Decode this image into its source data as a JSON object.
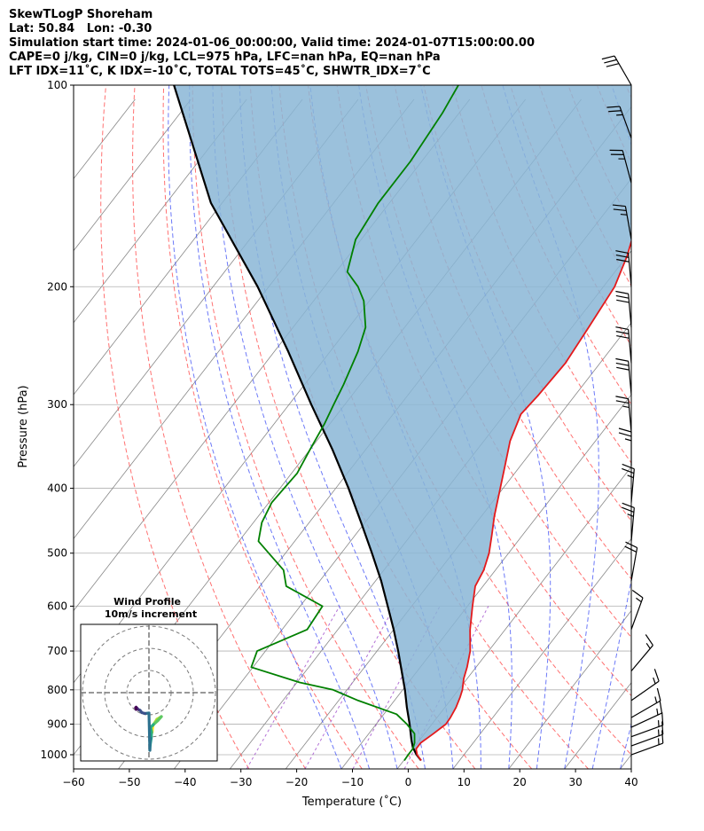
{
  "header": {
    "line1": "SkewTLogP Shoreham",
    "line2": "Lat: 50.84   Lon: -0.30",
    "line3": "Simulation start time: 2024-01-06_00:00:00, Valid time: 2024-01-07T15:00:00.00",
    "line4": "CAPE=0 j/kg, CIN=0 j/kg, LCL=975 hPa, LFC=nan hPa, EQ=nan hPa",
    "line5": "LFT IDX=11˚C, K IDX=-10˚C, TOTAL TOTS=45˚C, SHWTR_IDX=7˚C"
  },
  "colors": {
    "temperature": "#e41a1c",
    "dewpoint": "#008000",
    "parcel": "#000000",
    "cape_fill": "#8ab6d6",
    "dry_adiabat": "#ff4d4d",
    "moist_adiabat": "#3b4cf5",
    "mixing_ratio": "#a04dcc",
    "isotherm": "#888888"
  },
  "chart_data": {
    "type": "line",
    "xlabel": "Temperature (˚C)",
    "ylabel": "Pressure (hPa)",
    "xlim": [
      -60,
      40
    ],
    "ylim": [
      1050,
      100
    ],
    "x_ticks": [
      "−60",
      "−50",
      "−40",
      "−30",
      "−20",
      "−10",
      "0",
      "10",
      "20",
      "30",
      "40"
    ],
    "x_tick_values": [
      -60,
      -50,
      -40,
      -30,
      -20,
      -10,
      0,
      10,
      20,
      30,
      40
    ],
    "y_ticks": [
      "100",
      "200",
      "300",
      "400",
      "500",
      "600",
      "700",
      "800",
      "900",
      "1000"
    ],
    "y_tick_values": [
      100,
      200,
      300,
      400,
      500,
      600,
      700,
      800,
      900,
      1000
    ],
    "y_scale": "log",
    "skew_deg_per_decade": 93,
    "grid": true,
    "series": [
      {
        "key": "temperature",
        "p": [
          1020,
          1000,
          980,
          960,
          930,
          900,
          880,
          850,
          820,
          800,
          770,
          740,
          700,
          650,
          600,
          560,
          530,
          500,
          470,
          440,
          400,
          370,
          340,
          310,
          290,
          260,
          230,
          200,
          180,
          160,
          140,
          120,
          100
        ],
        "t": [
          3.1,
          1.6,
          0.6,
          0.6,
          1.6,
          2.5,
          2.4,
          2.0,
          1.3,
          0.7,
          -0.6,
          -1.6,
          -3.3,
          -6.3,
          -9.1,
          -11.4,
          -12.1,
          -13.5,
          -15.5,
          -17.7,
          -20.5,
          -22.8,
          -25.3,
          -27.1,
          -26.6,
          -26.2,
          -27.0,
          -28.0,
          -30.0,
          -33.0,
          -36.5,
          -39.0,
          -42.5
        ]
      },
      {
        "key": "dewpoint",
        "p": [
          1020,
          1000,
          980,
          960,
          930,
          900,
          870,
          830,
          800,
          780,
          740,
          700,
          650,
          600,
          560,
          530,
          500,
          480,
          450,
          420,
          380,
          350,
          320,
          300,
          280,
          250,
          230,
          210,
          200,
          190,
          170,
          150,
          130,
          110,
          100
        ],
        "t": [
          0.1,
          0.0,
          0.0,
          -0.5,
          -1.8,
          -4.5,
          -7.7,
          -16.5,
          -22.5,
          -29.5,
          -40.3,
          -41.5,
          -35.5,
          -36.0,
          -45.3,
          -48.0,
          -53.0,
          -56.5,
          -58.5,
          -59.5,
          -59.0,
          -60.0,
          -61.0,
          -62.0,
          -63.0,
          -65.0,
          -67.0,
          -71.0,
          -74.0,
          -78.0,
          -81.0,
          -82.0,
          -82.0,
          -83.0,
          -84.0
        ]
      },
      {
        "key": "parcel",
        "p": [
          1020,
          1000,
          975,
          950,
          900,
          850,
          800,
          750,
          700,
          650,
          600,
          550,
          500,
          450,
          400,
          350,
          300,
          250,
          200,
          150,
          100
        ],
        "t": [
          3.1,
          1.5,
          -0.2,
          -1.5,
          -4.0,
          -6.8,
          -9.6,
          -12.8,
          -16.2,
          -20.0,
          -24.3,
          -29.0,
          -34.5,
          -40.7,
          -47.7,
          -56.0,
          -66.0,
          -77.5,
          -92.0,
          -112.0,
          -135.0
        ]
      }
    ]
  },
  "wind_barbs": {
    "p": [
      100,
      120,
      140,
      170,
      200,
      230,
      260,
      290,
      330,
      370,
      420,
      480,
      550,
      650,
      750,
      830,
      880,
      910,
      940,
      970,
      1000
    ],
    "speed_kt": [
      30,
      25,
      25,
      25,
      30,
      30,
      30,
      30,
      25,
      25,
      25,
      25,
      20,
      15,
      15,
      15,
      15,
      15,
      15,
      15,
      15
    ],
    "dir_deg": [
      330,
      340,
      345,
      350,
      355,
      355,
      355,
      355,
      355,
      0,
      5,
      5,
      10,
      20,
      40,
      55,
      60,
      65,
      70,
      70,
      70
    ]
  },
  "hodograph": {
    "title_line1": "Wind Profile",
    "title_line2": "10m/s increment",
    "ring_count": 3,
    "trace_u": [
      0.7,
      0.9,
      1.8,
      2.8,
      2.0,
      1.0,
      0.4,
      0.6,
      0.5,
      0.3,
      0.2,
      0.0,
      -0.9,
      -1.6,
      -2.0,
      -2.4,
      -2.7,
      -2.9,
      -3.0,
      -2.9
    ],
    "trace_v": [
      -9.0,
      -7.4,
      -6.0,
      -5.4,
      -6.3,
      -7.2,
      -7.8,
      -8.9,
      -10.3,
      -11.6,
      -13.0,
      -4.6,
      -4.7,
      -4.5,
      -4.0,
      -3.8,
      -3.5,
      -3.3,
      -3.4,
      -3.8
    ]
  }
}
